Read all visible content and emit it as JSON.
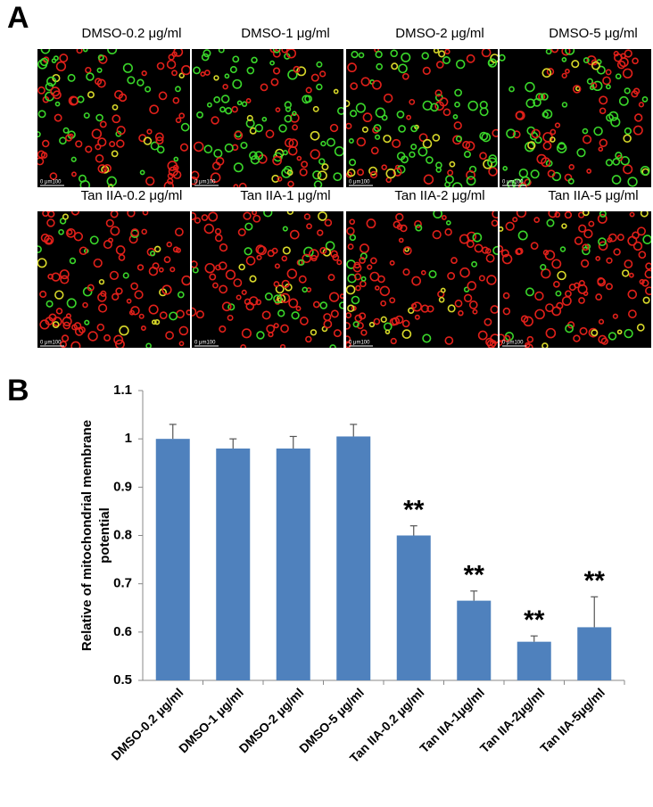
{
  "panel_a": {
    "letter": "A",
    "images": [
      "DMSO-0.2 μg/ml",
      "DMSO-1 μg/ml",
      "DMSO-2 μg/ml",
      "DMSO-5 μg/ml",
      "Tan IIA-0.2 μg/ml",
      "Tan IIA-1 μg/ml",
      "Tan IIA-2 μg/ml",
      "Tan IIA-5 μg/ml"
    ],
    "scale_bar_label": "0   μm100"
  },
  "chart_data": {
    "type": "bar",
    "panel_letter": "B",
    "ylabel": [
      "Relative of mitochondrial  membrane",
      "potential"
    ],
    "categories": [
      "DMSO-0.2 μg/ml",
      "DMSO-1 μg/ml",
      "DMSO-2 μg/ml",
      "DMSO-5 μg/ml",
      "Tan IIA-0.2 μg/ml",
      "Tan IIA-1μg/ml",
      "Tan IIA-2μg/ml",
      "Tan IIA-5μg/ml"
    ],
    "values": [
      1.0,
      0.98,
      0.98,
      1.005,
      0.8,
      0.665,
      0.58,
      0.61
    ],
    "errors": [
      0.03,
      0.02,
      0.025,
      0.025,
      0.02,
      0.02,
      0.012,
      0.063
    ],
    "significance": [
      null,
      null,
      null,
      null,
      "**",
      "**",
      "**",
      "**"
    ],
    "color": "#4f81bd",
    "ylim": [
      0.5,
      1.1
    ],
    "yticks": [
      0.5,
      0.6,
      0.7,
      0.8,
      0.9,
      {
        "value": 1.0,
        "label": "1"
      },
      1.1
    ]
  }
}
